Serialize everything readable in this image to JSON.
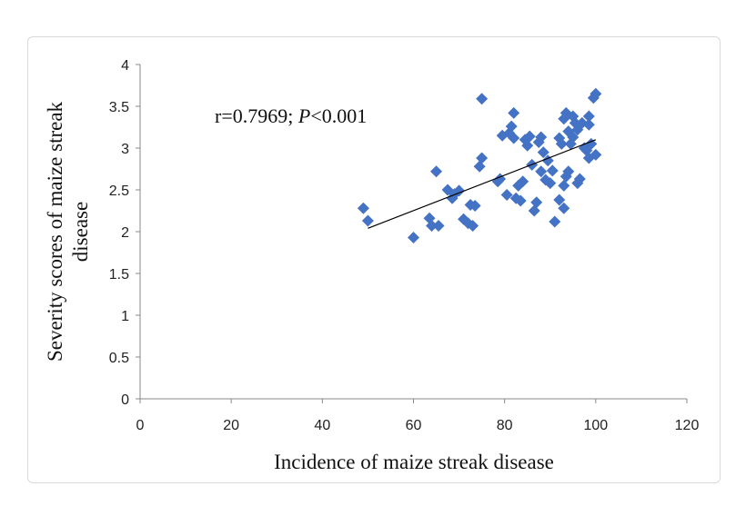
{
  "chart_data": {
    "type": "scatter",
    "xlabel": "Incidence of maize streak disease",
    "ylabel": "Severity scores of maize streak disease",
    "xlim": [
      0,
      120
    ],
    "ylim": [
      0,
      4
    ],
    "xticks": [
      0,
      20,
      40,
      60,
      80,
      100,
      120
    ],
    "yticks": [
      0,
      0.5,
      1,
      1.5,
      2,
      2.5,
      3,
      3.5,
      4
    ],
    "annotation": {
      "prefix": "r=0.7969; ",
      "italic": "P",
      "suffix": "<0.001"
    },
    "trendline": {
      "x": [
        50,
        100
      ],
      "y": [
        2.04,
        3.1
      ]
    },
    "marker_color": "#4472C4",
    "grid": false,
    "points": [
      {
        "x": 49,
        "y": 2.28
      },
      {
        "x": 50,
        "y": 2.13
      },
      {
        "x": 60,
        "y": 1.93
      },
      {
        "x": 63.5,
        "y": 2.16
      },
      {
        "x": 64,
        "y": 2.07
      },
      {
        "x": 65,
        "y": 2.72
      },
      {
        "x": 65.5,
        "y": 2.07
      },
      {
        "x": 67.5,
        "y": 2.5
      },
      {
        "x": 68.5,
        "y": 2.4
      },
      {
        "x": 69,
        "y": 2.45
      },
      {
        "x": 70,
        "y": 2.49
      },
      {
        "x": 71,
        "y": 2.15
      },
      {
        "x": 72,
        "y": 2.1
      },
      {
        "x": 72.5,
        "y": 2.32
      },
      {
        "x": 73,
        "y": 2.07
      },
      {
        "x": 73.5,
        "y": 2.31
      },
      {
        "x": 74.5,
        "y": 2.78
      },
      {
        "x": 75,
        "y": 2.88
      },
      {
        "x": 75,
        "y": 3.59
      },
      {
        "x": 78.5,
        "y": 2.6
      },
      {
        "x": 79,
        "y": 2.63
      },
      {
        "x": 79.5,
        "y": 3.15
      },
      {
        "x": 80.5,
        "y": 2.44
      },
      {
        "x": 81,
        "y": 3.18
      },
      {
        "x": 81.5,
        "y": 3.26
      },
      {
        "x": 82,
        "y": 3.12
      },
      {
        "x": 82,
        "y": 3.42
      },
      {
        "x": 82.5,
        "y": 2.4
      },
      {
        "x": 83,
        "y": 2.55
      },
      {
        "x": 83.5,
        "y": 2.37
      },
      {
        "x": 84,
        "y": 2.6
      },
      {
        "x": 84.5,
        "y": 3.1
      },
      {
        "x": 85,
        "y": 3.03
      },
      {
        "x": 85.5,
        "y": 3.14
      },
      {
        "x": 86,
        "y": 2.8
      },
      {
        "x": 86.5,
        "y": 2.25
      },
      {
        "x": 87,
        "y": 2.35
      },
      {
        "x": 87.5,
        "y": 3.07
      },
      {
        "x": 88,
        "y": 2.72
      },
      {
        "x": 88,
        "y": 3.13
      },
      {
        "x": 88.5,
        "y": 2.95
      },
      {
        "x": 89,
        "y": 2.62
      },
      {
        "x": 89.5,
        "y": 2.85
      },
      {
        "x": 90,
        "y": 2.58
      },
      {
        "x": 90.5,
        "y": 2.73
      },
      {
        "x": 91,
        "y": 2.12
      },
      {
        "x": 92,
        "y": 3.12
      },
      {
        "x": 92,
        "y": 2.38
      },
      {
        "x": 92.5,
        "y": 3.05
      },
      {
        "x": 93,
        "y": 3.35
      },
      {
        "x": 93,
        "y": 2.28
      },
      {
        "x": 93,
        "y": 2.55
      },
      {
        "x": 93.5,
        "y": 3.42
      },
      {
        "x": 93.5,
        "y": 2.66
      },
      {
        "x": 94,
        "y": 3.2
      },
      {
        "x": 94,
        "y": 2.72
      },
      {
        "x": 94.5,
        "y": 3.05
      },
      {
        "x": 95,
        "y": 3.38
      },
      {
        "x": 95,
        "y": 3.13
      },
      {
        "x": 95.5,
        "y": 3.3
      },
      {
        "x": 96,
        "y": 2.58
      },
      {
        "x": 96,
        "y": 3.22
      },
      {
        "x": 96.5,
        "y": 2.63
      },
      {
        "x": 97,
        "y": 3.3
      },
      {
        "x": 97.5,
        "y": 3.0
      },
      {
        "x": 98,
        "y": 2.97
      },
      {
        "x": 98.5,
        "y": 3.28
      },
      {
        "x": 98.5,
        "y": 3.38
      },
      {
        "x": 98.5,
        "y": 2.88
      },
      {
        "x": 99,
        "y": 3.05
      },
      {
        "x": 99.5,
        "y": 3.6
      },
      {
        "x": 100,
        "y": 3.65
      },
      {
        "x": 100,
        "y": 2.92
      }
    ]
  }
}
